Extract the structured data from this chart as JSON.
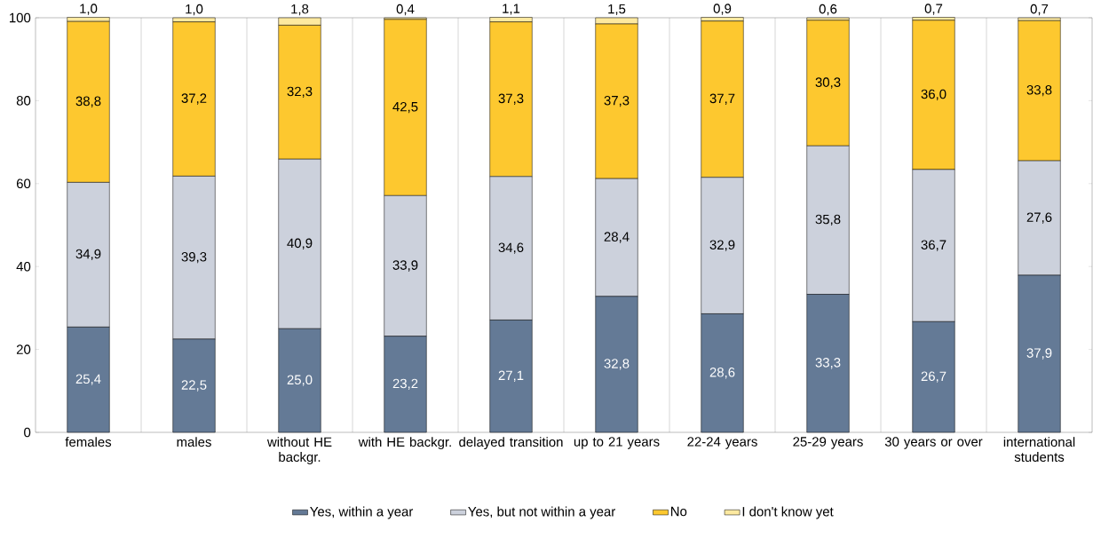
{
  "chart_data": {
    "type": "bar",
    "stacked": true,
    "categories": [
      "females",
      "males",
      "without HE backgr.",
      "with HE backgr.",
      "delayed transition",
      "up to 21 years",
      "22-24 years",
      "25-29 years",
      "30 years or over",
      "international students"
    ],
    "series": [
      {
        "name": "Yes, within a year",
        "color": "#647a96",
        "values": [
          25.4,
          22.5,
          25.0,
          23.2,
          27.1,
          32.8,
          28.6,
          33.3,
          26.7,
          37.9
        ],
        "value_labels": [
          "25,4",
          "22,5",
          "25,0",
          "23,2",
          "27,1",
          "32,8",
          "28,6",
          "33,3",
          "26,7",
          "37,9"
        ]
      },
      {
        "name": "Yes, but not within a year",
        "color": "#ccd1dc",
        "values": [
          34.9,
          39.3,
          40.9,
          33.9,
          34.6,
          28.4,
          32.9,
          35.8,
          36.7,
          27.6
        ],
        "value_labels": [
          "34,9",
          "39,3",
          "40,9",
          "33,9",
          "34,6",
          "28,4",
          "32,9",
          "35,8",
          "36,7",
          "27,6"
        ]
      },
      {
        "name": "No",
        "color": "#fdc82f",
        "values": [
          38.8,
          37.2,
          32.3,
          42.5,
          37.3,
          37.3,
          37.7,
          30.3,
          36.0,
          33.8
        ],
        "value_labels": [
          "38,8",
          "37,2",
          "32,3",
          "42,5",
          "37,3",
          "37,3",
          "37,7",
          "30,3",
          "36,0",
          "33,8"
        ]
      },
      {
        "name": "I don't know yet",
        "color": "#fde9a0",
        "values": [
          1.0,
          1.0,
          1.8,
          0.4,
          1.1,
          1.5,
          0.9,
          0.6,
          0.7,
          0.7
        ],
        "value_labels": [
          "1,0",
          "1,0",
          "1,8",
          "0,4",
          "1,1",
          "1,5",
          "0,9",
          "0,6",
          "0,7",
          "0,7"
        ]
      }
    ],
    "ylim": [
      0,
      100
    ],
    "yticks": [
      0,
      20,
      40,
      60,
      80,
      100
    ],
    "grid": "x",
    "legend": "bottom"
  }
}
